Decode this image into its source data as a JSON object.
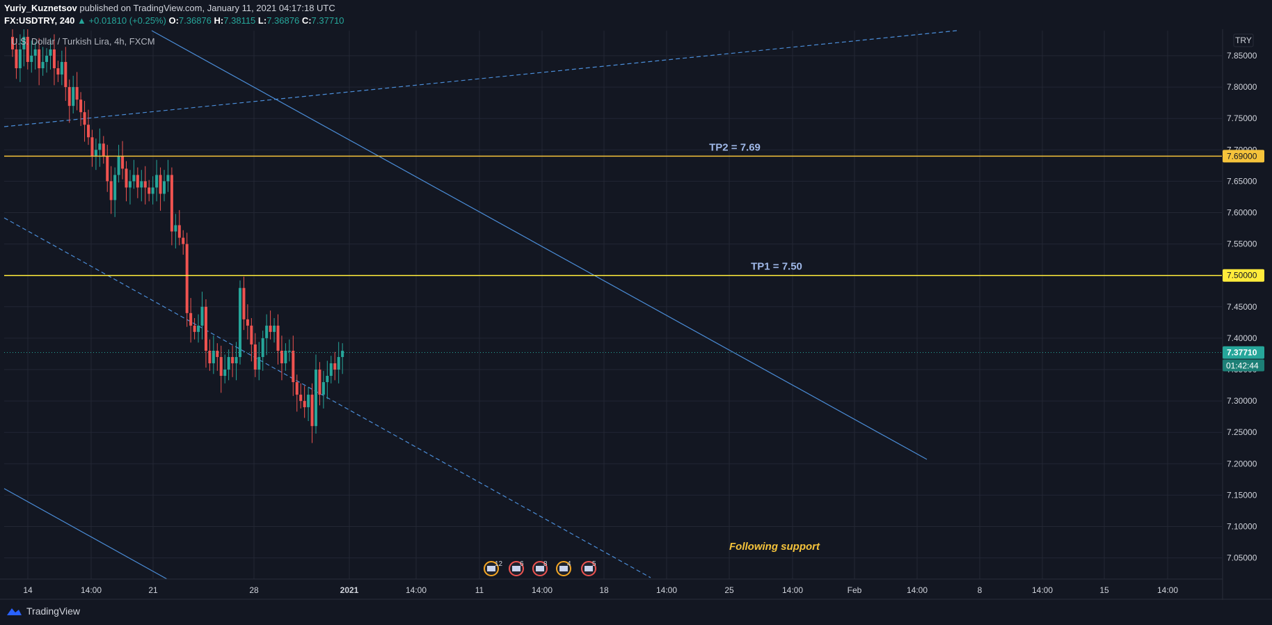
{
  "header": {
    "author": "Yuriy_Kuznetsov",
    "published_text": "published on TradingView.com, January 11, 2021 04:17:18 UTC",
    "symbol": "FX:USDTRY, 240",
    "change": "+0.01810 (+0.25%)",
    "ohlc": [
      {
        "k": "O:",
        "v": "7.36876"
      },
      {
        "k": "H:",
        "v": "7.38115"
      },
      {
        "k": "L:",
        "v": "7.36876"
      },
      {
        "k": "C:",
        "v": "7.37710"
      }
    ]
  },
  "footer": {
    "brand": "TradingView"
  },
  "chart_data": {
    "type": "candlestick",
    "title": "U.S. Dollar / Turkish Lira, 4h, FXCM",
    "currency": "TRY",
    "ylim": [
      7.02,
      7.88
    ],
    "y_ticks": [
      "7.85000",
      "7.80000",
      "7.75000",
      "7.70000",
      "7.65000",
      "7.60000",
      "7.55000",
      "7.50000",
      "7.45000",
      "7.40000",
      "7.35000",
      "7.30000",
      "7.25000",
      "7.20000",
      "7.15000",
      "7.10000",
      "7.05000"
    ],
    "x_ticks": [
      "14",
      "14:00",
      "21",
      "28",
      "2021",
      "14:00",
      "11",
      "14:00",
      "18",
      "14:00",
      "25",
      "14:00",
      "Feb",
      "14:00",
      "8",
      "14:00",
      "15",
      "14:00"
    ],
    "last_price": "7.37710",
    "countdown": "01:42:44",
    "levels": [
      {
        "label": "TP2 = 7.69",
        "value": 7.69,
        "tag": "7.69000",
        "color": "#f5c33b"
      },
      {
        "label": "TP1 = 7.50",
        "value": 7.5,
        "tag": "7.50000",
        "color": "#ffeb3b"
      }
    ],
    "annotation": "Following support",
    "event_badges": [
      "12",
      "6",
      "8",
      "4",
      "5"
    ],
    "grid": true,
    "up_color": "#26a69a",
    "down_color": "#ef5350",
    "closes": [
      7.86,
      7.83,
      7.86,
      7.88,
      7.84,
      7.85,
      7.86,
      7.83,
      7.84,
      7.85,
      7.86,
      7.83,
      7.82,
      7.84,
      7.8,
      7.77,
      7.8,
      7.78,
      7.76,
      7.74,
      7.72,
      7.69,
      7.7,
      7.71,
      7.69,
      7.65,
      7.62,
      7.66,
      7.69,
      7.67,
      7.64,
      7.65,
      7.66,
      7.64,
      7.65,
      7.64,
      7.63,
      7.64,
      7.66,
      7.63,
      7.65,
      7.66,
      7.57,
      7.58,
      7.56,
      7.55,
      7.44,
      7.42,
      7.41,
      7.42,
      7.45,
      7.38,
      7.36,
      7.38,
      7.37,
      7.34,
      7.35,
      7.37,
      7.36,
      7.37,
      7.48,
      7.43,
      7.42,
      7.39,
      7.35,
      7.37,
      7.4,
      7.42,
      7.41,
      7.42,
      7.38,
      7.36,
      7.38,
      7.38,
      7.33,
      7.31,
      7.3,
      7.29,
      7.31,
      7.26,
      7.35,
      7.31,
      7.33,
      7.34,
      7.36,
      7.35,
      7.37,
      7.38
    ]
  }
}
